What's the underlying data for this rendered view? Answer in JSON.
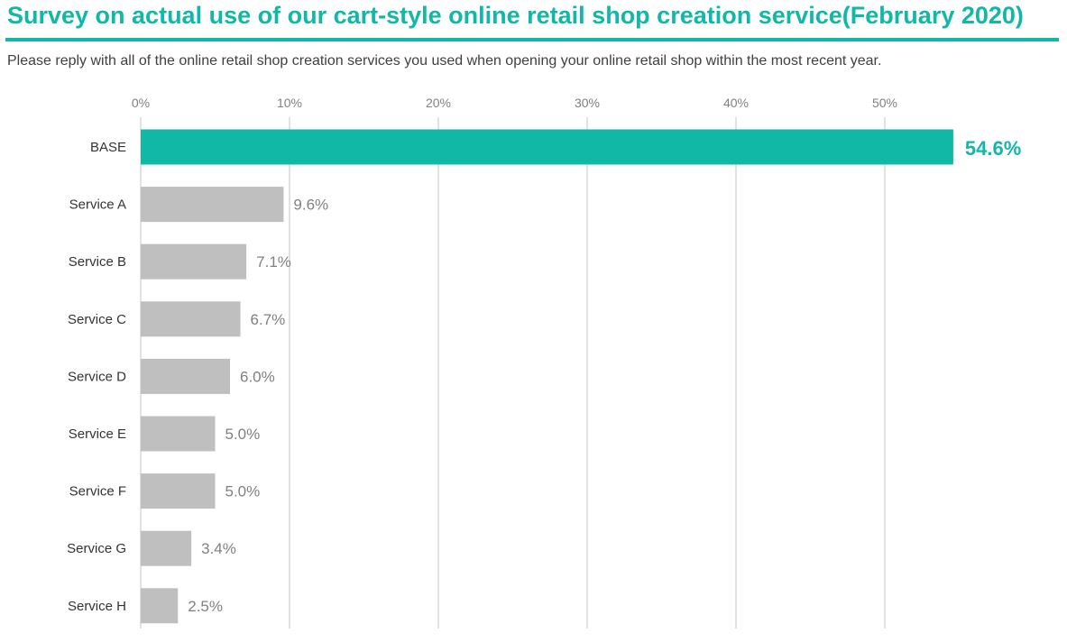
{
  "page": {
    "title": "Survey on actual use of our cart-style online retail shop creation service(February 2020)",
    "subtitle": "Please reply with all of the online retail shop creation services you used when opening your online retail shop within the most recent year."
  },
  "colors": {
    "accent": "#12b8a6",
    "bar_default": "#bfbfbf",
    "gridline": "#d9d9d9",
    "tick_label": "#808080",
    "category_label": "#333333",
    "value_label": "#808080"
  },
  "chart_data": {
    "type": "bar",
    "orientation": "horizontal",
    "categories": [
      "BASE",
      "Service A",
      "Service B",
      "Service C",
      "Service D",
      "Service E",
      "Service F",
      "Service G",
      "Service H"
    ],
    "values": [
      54.6,
      9.6,
      7.1,
      6.7,
      6.0,
      5.0,
      5.0,
      3.4,
      2.5
    ],
    "value_labels": [
      "54.6%",
      "9.6%",
      "7.1%",
      "6.7%",
      "6.0%",
      "5.0%",
      "5.0%",
      "3.4%",
      "2.5%"
    ],
    "highlight": "BASE",
    "xticks": [
      0,
      10,
      20,
      30,
      40,
      50
    ],
    "xtick_labels": [
      "0%",
      "10%",
      "20%",
      "30%",
      "40%",
      "50%"
    ],
    "xlim": [
      0,
      60
    ],
    "grid": true,
    "axis_position": "top"
  }
}
